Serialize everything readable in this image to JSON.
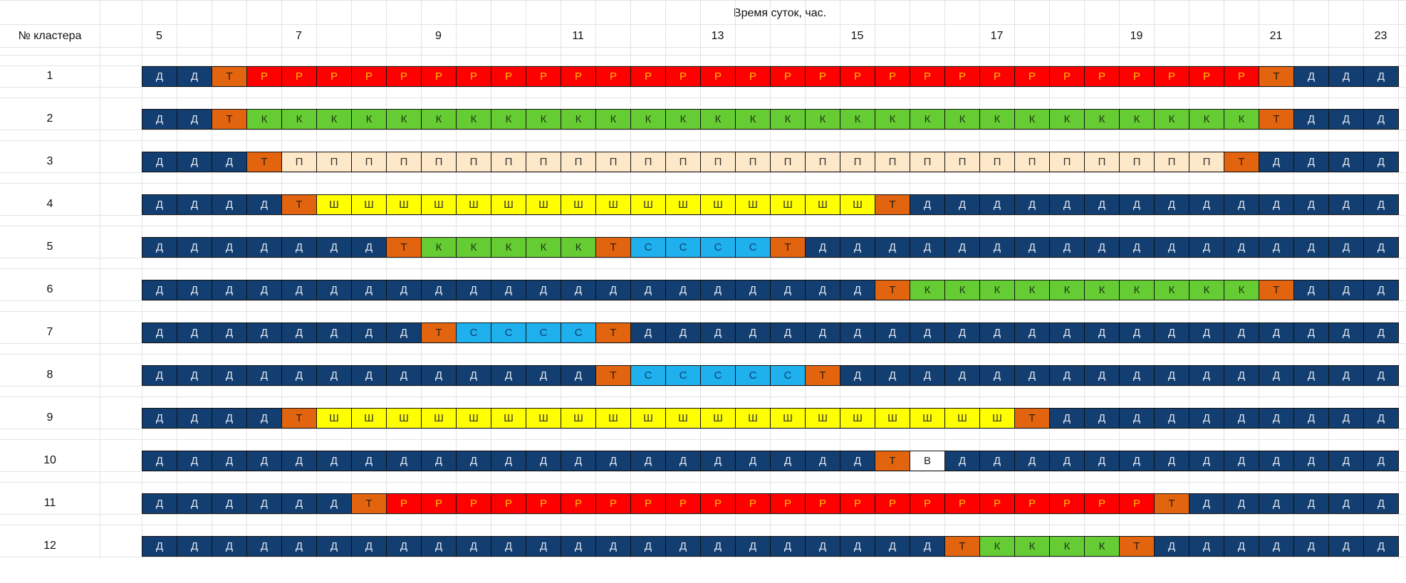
{
  "header": {
    "title": "Время суток, час.",
    "column_label": "№ кластера",
    "hours": [
      "5",
      null,
      null,
      null,
      "7",
      null,
      null,
      null,
      "9",
      null,
      null,
      null,
      "11",
      null,
      null,
      null,
      "13",
      null,
      null,
      null,
      "15",
      null,
      null,
      null,
      "17",
      null,
      null,
      null,
      "19",
      null,
      null,
      null,
      "21",
      null,
      null,
      "23"
    ]
  },
  "rows": [
    {
      "label": "1",
      "cells": [
        "Д",
        "Д",
        "Т",
        "Р",
        "Р",
        "Р",
        "Р",
        "Р",
        "Р",
        "Р",
        "Р",
        "Р",
        "Р",
        "Р",
        "Р",
        "Р",
        "Р",
        "Р",
        "Р",
        "Р",
        "Р",
        "Р",
        "Р",
        "Р",
        "Р",
        "Р",
        "Р",
        "Р",
        "Р",
        "Р",
        "Р",
        "Р",
        "Т",
        "Д",
        "Д",
        "Д"
      ]
    },
    {
      "label": "2",
      "cells": [
        "Д",
        "Д",
        "Т",
        "К",
        "К",
        "К",
        "К",
        "К",
        "К",
        "К",
        "К",
        "К",
        "К",
        "К",
        "К",
        "К",
        "К",
        "К",
        "К",
        "К",
        "К",
        "К",
        "К",
        "К",
        "К",
        "К",
        "К",
        "К",
        "К",
        "К",
        "К",
        "К",
        "Т",
        "Д",
        "Д",
        "Д"
      ]
    },
    {
      "label": "3",
      "cells": [
        "Д",
        "Д",
        "Д",
        "Т",
        "П",
        "П",
        "П",
        "П",
        "П",
        "П",
        "П",
        "П",
        "П",
        "П",
        "П",
        "П",
        "П",
        "П",
        "П",
        "П",
        "П",
        "П",
        "П",
        "П",
        "П",
        "П",
        "П",
        "П",
        "П",
        "П",
        "П",
        "Т",
        "Д",
        "Д",
        "Д",
        "Д"
      ]
    },
    {
      "label": "4",
      "cells": [
        "Д",
        "Д",
        "Д",
        "Д",
        "Т",
        "Ш",
        "Ш",
        "Ш",
        "Ш",
        "Ш",
        "Ш",
        "Ш",
        "Ш",
        "Ш",
        "Ш",
        "Ш",
        "Ш",
        "Ш",
        "Ш",
        "Ш",
        "Ш",
        "Т",
        "Д",
        "Д",
        "Д",
        "Д",
        "Д",
        "Д",
        "Д",
        "Д",
        "Д",
        "Д",
        "Д",
        "Д",
        "Д",
        "Д"
      ]
    },
    {
      "label": "5",
      "cells": [
        "Д",
        "Д",
        "Д",
        "Д",
        "Д",
        "Д",
        "Д",
        "Т",
        "К",
        "К",
        "К",
        "К",
        "К",
        "Т",
        "С",
        "С",
        "С",
        "С",
        "Т",
        "Д",
        "Д",
        "Д",
        "Д",
        "Д",
        "Д",
        "Д",
        "Д",
        "Д",
        "Д",
        "Д",
        "Д",
        "Д",
        "Д",
        "Д",
        "Д",
        "Д"
      ]
    },
    {
      "label": "6",
      "cells": [
        "Д",
        "Д",
        "Д",
        "Д",
        "Д",
        "Д",
        "Д",
        "Д",
        "Д",
        "Д",
        "Д",
        "Д",
        "Д",
        "Д",
        "Д",
        "Д",
        "Д",
        "Д",
        "Д",
        "Д",
        "Д",
        "Т",
        "К",
        "К",
        "К",
        "К",
        "К",
        "К",
        "К",
        "К",
        "К",
        "К",
        "Т",
        "Д",
        "Д",
        "Д"
      ]
    },
    {
      "label": "7",
      "cells": [
        "Д",
        "Д",
        "Д",
        "Д",
        "Д",
        "Д",
        "Д",
        "Д",
        "Т",
        "С",
        "С",
        "С",
        "С",
        "Т",
        "Д",
        "Д",
        "Д",
        "Д",
        "Д",
        "Д",
        "Д",
        "Д",
        "Д",
        "Д",
        "Д",
        "Д",
        "Д",
        "Д",
        "Д",
        "Д",
        "Д",
        "Д",
        "Д",
        "Д",
        "Д",
        "Д"
      ]
    },
    {
      "label": "8",
      "cells": [
        "Д",
        "Д",
        "Д",
        "Д",
        "Д",
        "Д",
        "Д",
        "Д",
        "Д",
        "Д",
        "Д",
        "Д",
        "Д",
        "Т",
        "С",
        "С",
        "С",
        "С",
        "С",
        "Т",
        "Д",
        "Д",
        "Д",
        "Д",
        "Д",
        "Д",
        "Д",
        "Д",
        "Д",
        "Д",
        "Д",
        "Д",
        "Д",
        "Д",
        "Д",
        "Д"
      ]
    },
    {
      "label": "9",
      "cells": [
        "Д",
        "Д",
        "Д",
        "Д",
        "Т",
        "Ш",
        "Ш",
        "Ш",
        "Ш",
        "Ш",
        "Ш",
        "Ш",
        "Ш",
        "Ш",
        "Ш",
        "Ш",
        "Ш",
        "Ш",
        "Ш",
        "Ш",
        "Ш",
        "Ш",
        "Ш",
        "Ш",
        "Ш",
        "Т",
        "Д",
        "Д",
        "Д",
        "Д",
        "Д",
        "Д",
        "Д",
        "Д",
        "Д",
        "Д"
      ]
    },
    {
      "label": "10",
      "cells": [
        "Д",
        "Д",
        "Д",
        "Д",
        "Д",
        "Д",
        "Д",
        "Д",
        "Д",
        "Д",
        "Д",
        "Д",
        "Д",
        "Д",
        "Д",
        "Д",
        "Д",
        "Д",
        "Д",
        "Д",
        "Д",
        "Т",
        "В",
        "Д",
        "Д",
        "Д",
        "Д",
        "Д",
        "Д",
        "Д",
        "Д",
        "Д",
        "Д",
        "Д",
        "Д",
        "Д"
      ]
    },
    {
      "label": "11",
      "cells": [
        "Д",
        "Д",
        "Д",
        "Д",
        "Д",
        "Д",
        "Т",
        "Р",
        "Р",
        "Р",
        "Р",
        "Р",
        "Р",
        "Р",
        "Р",
        "Р",
        "Р",
        "Р",
        "Р",
        "Р",
        "Р",
        "Р",
        "Р",
        "Р",
        "Р",
        "Р",
        "Р",
        "Р",
        "Р",
        "Т",
        "Д",
        "Д",
        "Д",
        "Д",
        "Д",
        "Д"
      ]
    },
    {
      "label": "12",
      "cells": [
        "Д",
        "Д",
        "Д",
        "Д",
        "Д",
        "Д",
        "Д",
        "Д",
        "Д",
        "Д",
        "Д",
        "Д",
        "Д",
        "Д",
        "Д",
        "Д",
        "Д",
        "Д",
        "Д",
        "Д",
        "Д",
        "Д",
        "Д",
        "Т",
        "К",
        "К",
        "К",
        "К",
        "Т",
        "Д",
        "Д",
        "Д",
        "Д",
        "Д",
        "Д",
        "Д"
      ]
    }
  ],
  "colors": {
    "Д": {
      "fill": "#123e72",
      "text": "#e6e9ef"
    },
    "Т": {
      "fill": "#e2640f",
      "text": "#2a1a10"
    },
    "Р": {
      "fill": "#ff0000",
      "text": "#ffc000"
    },
    "К": {
      "fill": "#66cc33",
      "text": "#1d3a12"
    },
    "П": {
      "fill": "#fde9c9",
      "text": "#333333"
    },
    "Ш": {
      "fill": "#ffff00",
      "text": "#333333"
    },
    "С": {
      "fill": "#1fb0ee",
      "text": "#123e72"
    },
    "В": {
      "fill": "#ffffff",
      "text": "#222222"
    }
  }
}
